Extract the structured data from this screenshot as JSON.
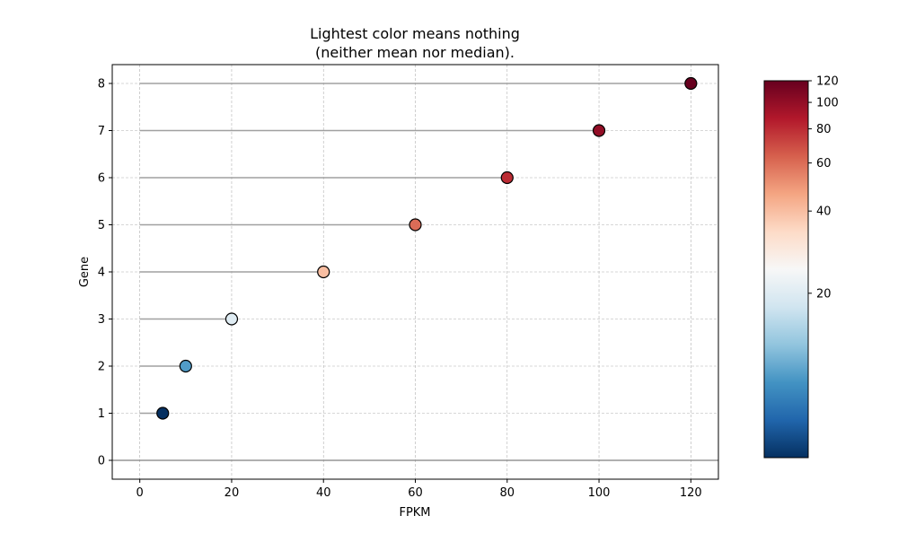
{
  "chart_data": {
    "type": "scatter",
    "title_line1": "Lightest color means nothing",
    "title_line2": "(neither mean nor median).",
    "xlabel": "FPKM",
    "ylabel": "Gene",
    "xlim": [
      -6,
      126
    ],
    "ylim": [
      -0.4,
      8.4
    ],
    "x_ticks": [
      0,
      20,
      40,
      60,
      80,
      100,
      120
    ],
    "y_ticks": [
      0,
      1,
      2,
      3,
      4,
      5,
      6,
      7,
      8
    ],
    "grid": true,
    "points": [
      {
        "gene": 1,
        "fpkm": 5
      },
      {
        "gene": 2,
        "fpkm": 10
      },
      {
        "gene": 3,
        "fpkm": 20
      },
      {
        "gene": 4,
        "fpkm": 40
      },
      {
        "gene": 5,
        "fpkm": 60
      },
      {
        "gene": 6,
        "fpkm": 80
      },
      {
        "gene": 7,
        "fpkm": 100
      },
      {
        "gene": 8,
        "fpkm": 120
      }
    ],
    "stems": true,
    "baseline_y": 0,
    "colorbar": {
      "colormap": "RdBu_r",
      "scale": "log",
      "vmin": 5,
      "vmax": 120,
      "ticks": [
        20,
        40,
        60,
        80,
        100,
        120
      ]
    },
    "colors": {
      "stem": "#a0a0a0",
      "baseline": "#808080",
      "grid": "#b0b0b0",
      "marker_edge": "#000000"
    }
  }
}
